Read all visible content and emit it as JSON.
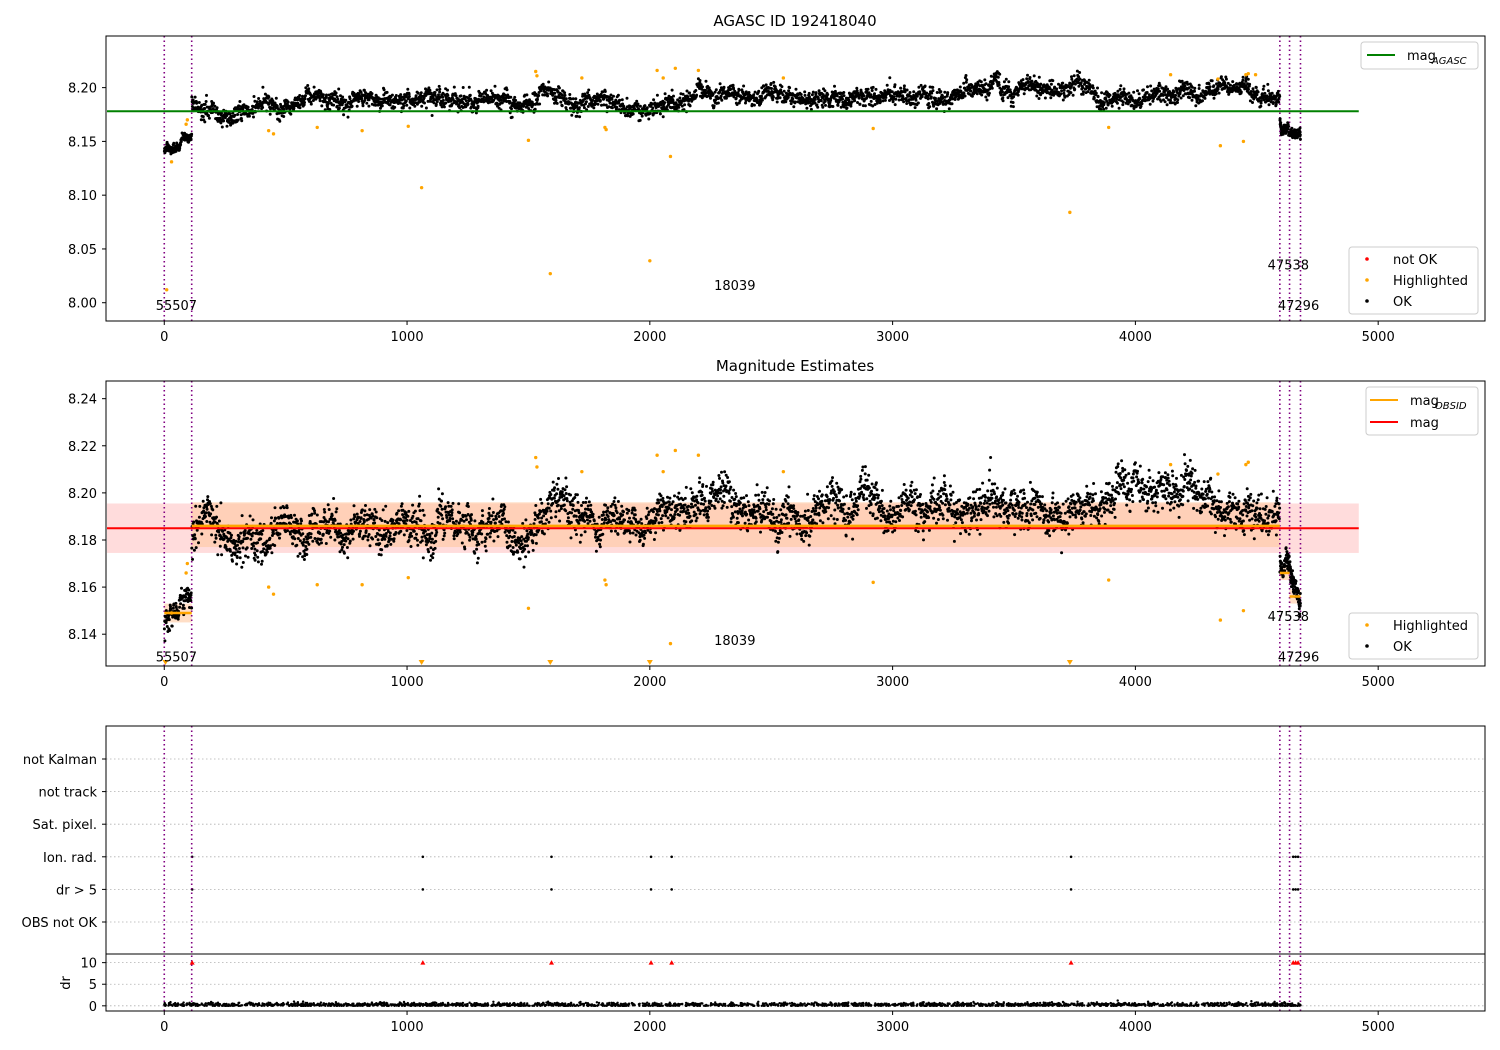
{
  "figure": {
    "background": "#ffffff"
  },
  "colors": {
    "ok": "#000000",
    "highlighted": "#ffa500",
    "not_ok": "#ff0000",
    "mag_agasc": "#008000",
    "mag": "#ff0000",
    "mag_obsid": "#ffa500",
    "obsid_boundary": "#800080",
    "band_mag": "#ffd0d0",
    "band_obsid": "#ffc8a0",
    "grid": "#b0b0b0",
    "dr_marker": "#ff0000"
  },
  "chart_data": [
    {
      "id": "agasc",
      "type": "scatter",
      "title": "AGASC ID 192418040",
      "xlim": [
        -240,
        5440
      ],
      "ylim": [
        7.983,
        8.248
      ],
      "xticks": [
        0,
        1000,
        2000,
        3000,
        4000,
        5000
      ],
      "yticks": [
        8.0,
        8.05,
        8.1,
        8.15,
        8.2
      ],
      "ytick_labels": [
        "8.00",
        "8.05",
        "8.10",
        "8.15",
        "8.20"
      ],
      "xtick_labels": [
        "0",
        "1000",
        "2000",
        "3000",
        "4000",
        "5000"
      ],
      "legend_lines": [
        {
          "label": "mag",
          "sub": "AGASC",
          "color_key": "mag_agasc"
        }
      ],
      "legend_points": [
        {
          "label": "not OK",
          "color_key": "not_ok"
        },
        {
          "label": "Highlighted",
          "color_key": "highlighted"
        },
        {
          "label": "OK",
          "color_key": "ok"
        }
      ],
      "reference_line": {
        "value": 8.178,
        "x_range": [
          -240,
          4920
        ]
      },
      "obsid_boundaries": [
        0,
        113,
        4595,
        4635,
        4680
      ],
      "obsid_labels": [
        {
          "text": "55507",
          "x": 50,
          "y": 7.993
        },
        {
          "text": "18039",
          "x": 2350,
          "y": 8.012
        },
        {
          "text": "47538",
          "x": 4630,
          "y": 8.031
        },
        {
          "text": "47296",
          "x": 4672,
          "y": 7.993
        }
      ],
      "segments": [
        {
          "x0": 0,
          "x1": 113,
          "mag_start": 8.142,
          "mag_end": 8.152,
          "noise": 0.004,
          "count": 110,
          "step": 1
        },
        {
          "x0": 113,
          "x1": 4595,
          "mag_start": 8.183,
          "mag_end": 8.197,
          "noise": 0.007,
          "count": 3400,
          "step": 1
        },
        {
          "x0": 4595,
          "x1": 4680,
          "mag_start": 8.168,
          "mag_end": 8.155,
          "noise": 0.004,
          "count": 140,
          "step": 1
        }
      ],
      "highlighted": [
        [
          10,
          8.012
        ],
        [
          30,
          8.131
        ],
        [
          90,
          8.166
        ],
        [
          95,
          8.17
        ],
        [
          430,
          8.16
        ],
        [
          450,
          8.157
        ],
        [
          630,
          8.163
        ],
        [
          815,
          8.16
        ],
        [
          1005,
          8.164
        ],
        [
          1060,
          8.107
        ],
        [
          1500,
          8.151
        ],
        [
          1530,
          8.215
        ],
        [
          1535,
          8.211
        ],
        [
          1590,
          8.027
        ],
        [
          1720,
          8.209
        ],
        [
          1815,
          8.163
        ],
        [
          1820,
          8.161
        ],
        [
          2000,
          8.039
        ],
        [
          2030,
          8.216
        ],
        [
          2055,
          8.209
        ],
        [
          2085,
          8.136
        ],
        [
          2105,
          8.218
        ],
        [
          2200,
          8.216
        ],
        [
          2550,
          8.209
        ],
        [
          2920,
          8.162
        ],
        [
          3730,
          8.084
        ],
        [
          3890,
          8.163
        ],
        [
          4145,
          8.212
        ],
        [
          4340,
          8.208
        ],
        [
          4350,
          8.146
        ],
        [
          4445,
          8.15
        ],
        [
          4455,
          8.212
        ],
        [
          4465,
          8.213
        ],
        [
          4495,
          8.212
        ]
      ]
    },
    {
      "id": "estimates",
      "type": "scatter",
      "title": "Magnitude Estimates",
      "xlim": [
        -240,
        5440
      ],
      "ylim": [
        8.1265,
        8.2475
      ],
      "xticks": [
        0,
        1000,
        2000,
        3000,
        4000,
        5000
      ],
      "xtick_labels": [
        "0",
        "1000",
        "2000",
        "3000",
        "4000",
        "5000"
      ],
      "yticks": [
        8.14,
        8.16,
        8.18,
        8.2,
        8.22,
        8.24
      ],
      "ytick_labels": [
        "8.14",
        "8.16",
        "8.18",
        "8.20",
        "8.22",
        "8.24"
      ],
      "legend_lines": [
        {
          "label": "mag",
          "sub": "OBSID",
          "color_key": "mag_obsid"
        },
        {
          "label": "mag",
          "sub": "",
          "color_key": "mag"
        }
      ],
      "legend_points": [
        {
          "label": "Highlighted",
          "color_key": "highlighted"
        },
        {
          "label": "OK",
          "color_key": "ok"
        }
      ],
      "mag_line": {
        "value": 8.185,
        "band": [
          8.1745,
          8.1955
        ],
        "x_range": [
          -240,
          4920
        ]
      },
      "obsid_mags": [
        {
          "x0": 0,
          "x1": 113,
          "value": 8.149,
          "band": [
            8.145,
            8.153
          ]
        },
        {
          "x0": 113,
          "x1": 4595,
          "value": 8.186,
          "band": [
            8.177,
            8.196
          ]
        },
        {
          "x0": 4595,
          "x1": 4635,
          "value": 8.166,
          "band": [
            8.163,
            8.169
          ]
        },
        {
          "x0": 4635,
          "x1": 4680,
          "value": 8.156,
          "band": [
            8.153,
            8.159
          ]
        }
      ],
      "obsid_boundaries": [
        0,
        113,
        4595,
        4635,
        4680
      ],
      "obsid_labels": [
        {
          "text": "55507",
          "x": 50,
          "y": 8.1285
        },
        {
          "text": "18039",
          "x": 2350,
          "y": 8.1355
        },
        {
          "text": "47538",
          "x": 4630,
          "y": 8.1455
        },
        {
          "text": "47296",
          "x": 4672,
          "y": 8.1285
        }
      ],
      "segments": [
        {
          "x0": 0,
          "x1": 113,
          "mag_start": 8.144,
          "mag_end": 8.156,
          "noise": 0.004,
          "count": 110,
          "step": 1
        },
        {
          "x0": 113,
          "x1": 4595,
          "mag_start": 8.183,
          "mag_end": 8.197,
          "noise": 0.007,
          "count": 3400,
          "step": 1
        },
        {
          "x0": 4595,
          "x1": 4680,
          "mag_start": 8.168,
          "mag_end": 8.155,
          "noise": 0.004,
          "count": 140,
          "step": 1
        }
      ],
      "highlighted": [
        [
          30,
          8.149
        ],
        [
          90,
          8.166
        ],
        [
          95,
          8.17
        ],
        [
          430,
          8.16
        ],
        [
          450,
          8.157
        ],
        [
          630,
          8.161
        ],
        [
          815,
          8.161
        ],
        [
          1005,
          8.164
        ],
        [
          1500,
          8.151
        ],
        [
          1530,
          8.215
        ],
        [
          1535,
          8.211
        ],
        [
          1720,
          8.209
        ],
        [
          1815,
          8.163
        ],
        [
          1820,
          8.161
        ],
        [
          2030,
          8.216
        ],
        [
          2055,
          8.209
        ],
        [
          2085,
          8.136
        ],
        [
          2105,
          8.218
        ],
        [
          2200,
          8.216
        ],
        [
          2550,
          8.209
        ],
        [
          2920,
          8.162
        ],
        [
          3890,
          8.163
        ],
        [
          4145,
          8.212
        ],
        [
          4340,
          8.208
        ],
        [
          4350,
          8.146
        ],
        [
          4445,
          8.15
        ],
        [
          4455,
          8.212
        ],
        [
          4465,
          8.213
        ]
      ],
      "offscale_markers": [
        5,
        1060,
        1590,
        2000,
        3730
      ]
    },
    {
      "id": "flags",
      "type": "scatter",
      "xlim": [
        -240,
        5440
      ],
      "xticks": [
        0,
        1000,
        2000,
        3000,
        4000,
        5000
      ],
      "xtick_labels": [
        "0",
        "1000",
        "2000",
        "3000",
        "4000",
        "5000"
      ],
      "flag_labels": [
        "not Kalman",
        "not track",
        "Sat. pixel.",
        "Ion. rad.",
        "dr > 5",
        "OBS not OK"
      ],
      "flag_points": {
        "Ion. rad.": [
          115,
          1065,
          1595,
          2005,
          2090,
          3735,
          4650,
          4660,
          4670
        ],
        "dr > 5": [
          115,
          1065,
          1595,
          2005,
          2090,
          3735,
          4650,
          4660,
          4670
        ]
      },
      "dr": {
        "ylabel": "dr",
        "ylim": [
          -1.2,
          12
        ],
        "yticks": [
          0,
          5,
          10
        ],
        "ytick_labels": [
          "0",
          "5",
          "10"
        ],
        "clip_value": 10,
        "high_points": [
          115,
          1065,
          1595,
          2005,
          2090,
          3735,
          4650,
          4660,
          4670
        ],
        "baseline": 0.25,
        "noise": 0.25
      },
      "obsid_boundaries": [
        0,
        113,
        4595,
        4635,
        4680
      ]
    }
  ]
}
